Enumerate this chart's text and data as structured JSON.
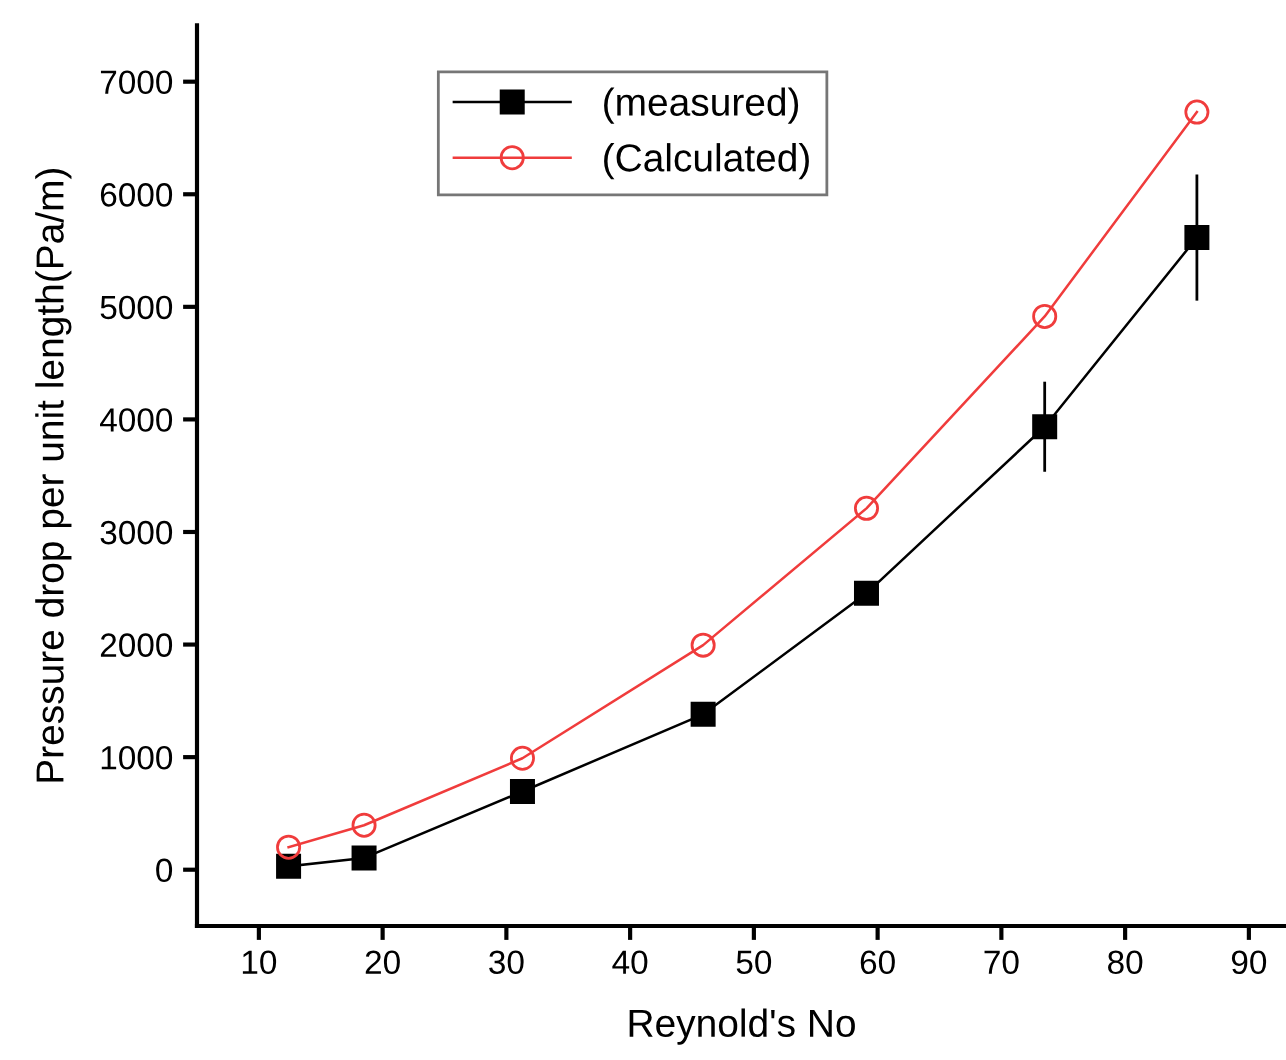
{
  "chart_data": {
    "type": "line",
    "xlabel": "Reynold's No",
    "ylabel": "Pressure drop per unit length(Pa/m)",
    "xlim": [
      5,
      93
    ],
    "xticks": [
      10,
      20,
      30,
      40,
      50,
      60,
      70,
      80,
      90
    ],
    "ylim": [
      -500,
      7500
    ],
    "yticks": [
      0,
      1000,
      2000,
      3000,
      4000,
      5000,
      6000,
      7000
    ],
    "grid": false,
    "legend": "top",
    "line_style": "solid",
    "series": [
      {
        "name": "(measured)",
        "color": "#000000",
        "marker": "square",
        "x": [
          12.4,
          18.5,
          31.3,
          45.9,
          59.1,
          73.5,
          85.8
        ],
        "values": [
          30,
          105,
          695,
          1380,
          2455,
          3935,
          5615
        ],
        "errors": [
          null,
          null,
          null,
          null,
          null,
          400,
          560
        ]
      },
      {
        "name": "(Calculated)",
        "color": "#f03c3c",
        "marker": "circle",
        "x": [
          12.4,
          18.5,
          31.3,
          45.9,
          59.1,
          73.5,
          85.8
        ],
        "values": [
          200,
          395,
          990,
          1995,
          3210,
          4915,
          6730
        ]
      }
    ]
  }
}
